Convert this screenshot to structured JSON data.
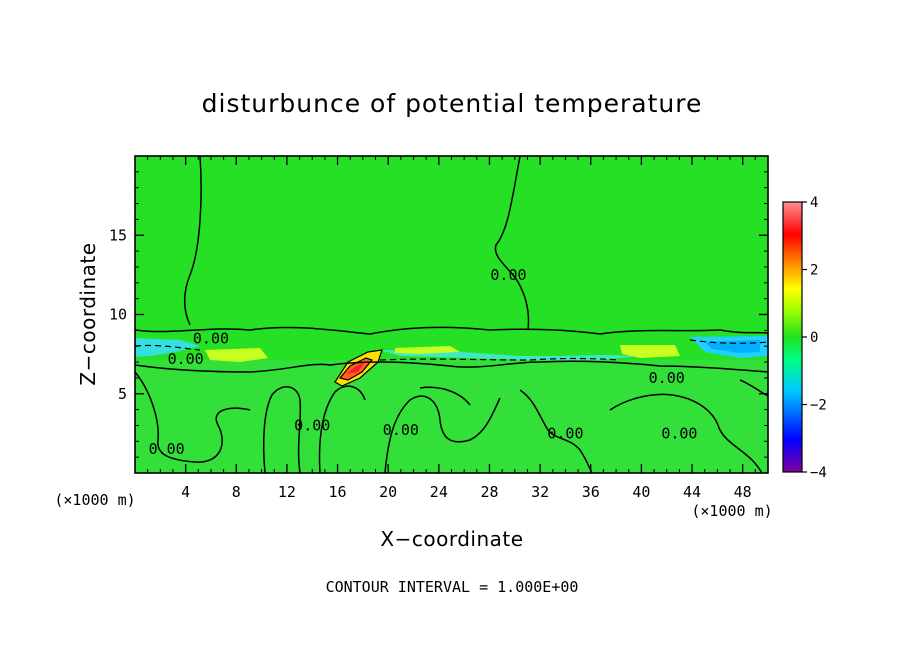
{
  "chart_data": {
    "type": "contour",
    "title": "disturbunce of potential temperature",
    "xlabel": "X−coordinate",
    "ylabel": "Z−coordinate",
    "x_unit_left": "(×1000 m)",
    "x_unit_right": "(×1000 m)",
    "xlim": [
      0,
      50
    ],
    "ylim": [
      0,
      20
    ],
    "x_ticks": [
      4,
      8,
      12,
      16,
      20,
      24,
      28,
      32,
      36,
      40,
      44,
      48
    ],
    "y_ticks": [
      5,
      10,
      15
    ],
    "x_tick_labels": [
      "4",
      "8",
      "12",
      "16",
      "20",
      "24",
      "28",
      "32",
      "36",
      "40",
      "44",
      "48"
    ],
    "y_tick_labels": [
      "5",
      "10",
      "15"
    ],
    "colorbar": {
      "range": [
        -4,
        4
      ],
      "ticks": [
        4,
        2,
        0,
        -2,
        -4
      ],
      "tick_labels": [
        "4",
        "2",
        "0",
        "−2",
        "−4"
      ],
      "colors": [
        "#8000a0",
        "#0000ff",
        "#00c8ff",
        "#00ff80",
        "#20e020",
        "#a0ff00",
        "#ffff00",
        "#ff8000",
        "#ff0000",
        "#ff9090"
      ]
    },
    "contour_labels": [
      {
        "text": "0.00",
        "x": 6,
        "z": 8.5
      },
      {
        "text": "0.00",
        "x": 4,
        "z": 7.2
      },
      {
        "text": "0.00",
        "x": 2.5,
        "z": 1.5
      },
      {
        "text": "0.00",
        "x": 14,
        "z": 3
      },
      {
        "text": "0.00",
        "x": 21,
        "z": 2.7
      },
      {
        "text": "0.00",
        "x": 29.5,
        "z": 12.5
      },
      {
        "text": "0.00",
        "x": 34,
        "z": 2.5
      },
      {
        "text": "0.00",
        "x": 42,
        "z": 6
      },
      {
        "text": "0.00",
        "x": 43,
        "z": 2.5
      }
    ],
    "footer": "CONTOUR INTERVAL = 1.000E+00"
  }
}
